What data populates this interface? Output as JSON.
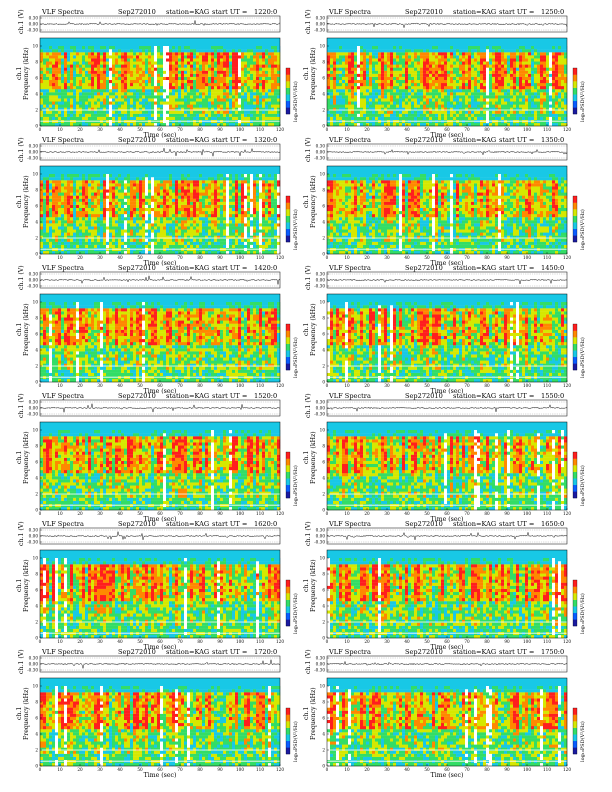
{
  "figure": {
    "header_prefix": "VLF Spectra",
    "date": "Sep272010",
    "station": "station=KAG",
    "start_label": "start  UT  ="
  },
  "panels": [
    {
      "start_ut": "1220:0"
    },
    {
      "start_ut": "1250:0"
    },
    {
      "start_ut": "1320:0"
    },
    {
      "start_ut": "1350:0"
    },
    {
      "start_ut": "1420:0"
    },
    {
      "start_ut": "1450:0"
    },
    {
      "start_ut": "1520:0"
    },
    {
      "start_ut": "1550:0"
    },
    {
      "start_ut": "1620:0"
    },
    {
      "start_ut": "1650:0"
    },
    {
      "start_ut": "1720:0"
    },
    {
      "start_ut": "1750:0"
    }
  ],
  "chart_data": {
    "type": "heatmap",
    "description_scope": "12 identical-format spectrogram panels; each has a waveform strip (ch1 in V) above a frequency-time spectrogram colored by log10 PSD",
    "waveform": {
      "ylabel": "ch.1 (V)",
      "ylim": [
        -0.3,
        0.3
      ],
      "yticks": [
        "0.30",
        "0.00",
        "-0.30"
      ]
    },
    "spectrogram": {
      "xlabel": "Time  (sec)",
      "xlim": [
        0,
        120
      ],
      "xticks": [
        "0",
        "10",
        "20",
        "30",
        "40",
        "50",
        "60",
        "70",
        "80",
        "90",
        "100",
        "110",
        "120"
      ],
      "ylabel": "Frequency  (kHz)",
      "ylim": [
        0,
        10
      ],
      "yticks": [
        "0",
        "2",
        "4",
        "6",
        "8",
        "10"
      ]
    },
    "colorbar": {
      "label": "log₁₀PSD(V²/Hz)",
      "colors": [
        "#1a1aa0",
        "#0a5cff",
        "#18c8e6",
        "#33dd66",
        "#d6e800",
        "#ff8800",
        "#ff1e1e"
      ]
    },
    "legend_ch": "ch.1"
  }
}
